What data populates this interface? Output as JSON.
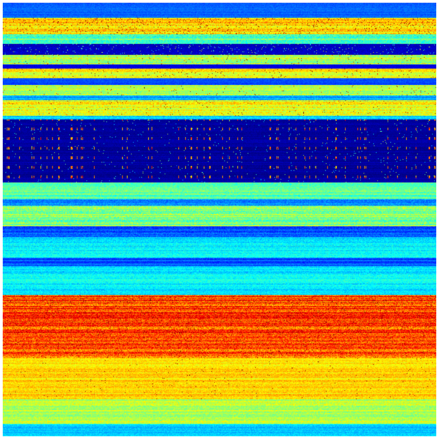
{
  "image": {
    "kind": "jet-colormap intensity matrix",
    "colormap": [
      "#00007f",
      "#0000ff",
      "#0080ff",
      "#00ffff",
      "#80ff80",
      "#ffff00",
      "#ff8000",
      "#ff0000",
      "#7f0000"
    ]
  }
}
